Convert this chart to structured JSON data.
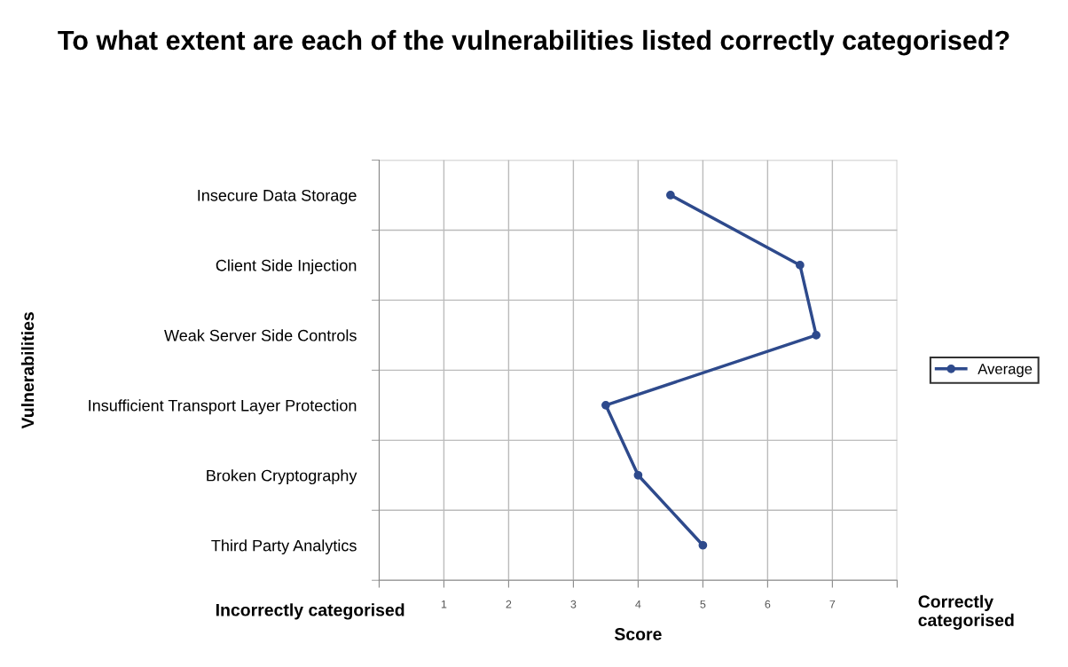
{
  "chart_data": {
    "type": "line",
    "orientation": "horizontal",
    "title": "To what extent are each of the vulnerabilities listed correctly categorised?",
    "xlabel": "Score",
    "ylabel": "Vulnerabilities",
    "categories": [
      "Insecure Data Storage",
      "Client Side Injection",
      "Weak Server Side Controls",
      "Insufficient Transport Layer Protection",
      "Broken Cryptography",
      "Third Party Analytics"
    ],
    "series": [
      {
        "name": "Average",
        "color": "#2e4a8c",
        "values": [
          4.5,
          6.5,
          6.75,
          3.5,
          4,
          5
        ]
      }
    ],
    "xlim": [
      0,
      8
    ],
    "xticks": [
      {
        "value": 0,
        "label": null
      },
      1,
      2,
      3,
      4,
      5,
      6,
      7,
      {
        "value": 8,
        "label": null
      }
    ],
    "annotations": [
      "Incorrectly categorised",
      "Correctly categorised"
    ],
    "grid": true,
    "legend": "right",
    "marker": "circle",
    "line_style": "solid"
  }
}
